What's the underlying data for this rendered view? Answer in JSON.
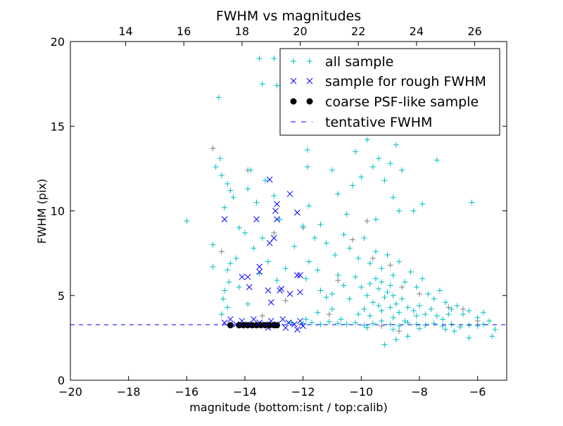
{
  "chart_data": {
    "type": "scatter",
    "title": "FWHM vs magnitudes",
    "xlabel": "magnitude (bottom:isnt / top:calib)",
    "ylabel": "FWHM (pix)",
    "xlim": [
      -20,
      -5
    ],
    "ylim": [
      0,
      20
    ],
    "top_axis_offset": 32.1,
    "x_ticks": [
      -20,
      -18,
      -16,
      -14,
      -12,
      -10,
      -8,
      -6
    ],
    "x_tick_labels": [
      "−20",
      "−18",
      "−16",
      "−14",
      "−12",
      "−10",
      "−8",
      "−6"
    ],
    "top_ticks": [
      14,
      16,
      18,
      20,
      22,
      24,
      26
    ],
    "top_tick_labels": [
      "14",
      "16",
      "18",
      "20",
      "22",
      "24",
      "26"
    ],
    "y_ticks": [
      0,
      5,
      10,
      15,
      20
    ],
    "y_tick_labels": [
      "0",
      "5",
      "10",
      "15",
      "20"
    ],
    "grid": false,
    "legend_position": "top-right",
    "tentative_fwhm": 3.28,
    "series": [
      {
        "name": "all sample",
        "marker": "+",
        "color": "#00bfbf",
        "points": [
          [
            -13.5,
            19.0
          ],
          [
            -13.0,
            19.0
          ],
          [
            -13.4,
            17.5
          ],
          [
            -12.6,
            17.6
          ],
          [
            -12.9,
            17.4
          ],
          [
            -14.9,
            16.7
          ],
          [
            -14.85,
            13.1
          ],
          [
            -15.0,
            12.6
          ],
          [
            -14.8,
            12.1
          ],
          [
            -14.6,
            11.6
          ],
          [
            -14.5,
            11.2
          ],
          [
            -14.4,
            10.8
          ],
          [
            -14.7,
            10.2
          ],
          [
            -14.2,
            9.0
          ],
          [
            -14.0,
            8.7
          ],
          [
            -13.8,
            12.4
          ],
          [
            -13.9,
            11.3
          ],
          [
            -13.6,
            10.5
          ],
          [
            -13.3,
            11.8
          ],
          [
            -13.0,
            10.9
          ],
          [
            -12.8,
            9.5
          ],
          [
            -13.4,
            8.4
          ],
          [
            -13.7,
            7.8
          ],
          [
            -14.3,
            7.2
          ],
          [
            -14.5,
            6.9
          ],
          [
            -14.6,
            6.5
          ],
          [
            -14.55,
            5.8
          ],
          [
            -14.7,
            5.3
          ],
          [
            -14.75,
            4.8
          ],
          [
            -14.6,
            4.3
          ],
          [
            -14.8,
            3.9
          ],
          [
            -14.2,
            5.5
          ],
          [
            -13.9,
            4.5
          ],
          [
            -13.5,
            6.3
          ],
          [
            -13.2,
            7.0
          ],
          [
            -12.9,
            5.9
          ],
          [
            -12.6,
            6.6
          ],
          [
            -12.3,
            7.9
          ],
          [
            -12.0,
            9.1
          ],
          [
            -16.0,
            9.4
          ],
          [
            -15.1,
            8.0
          ],
          [
            -15.1,
            6.7
          ],
          [
            -11.85,
            13.6
          ],
          [
            -11.85,
            12.6
          ],
          [
            -11.8,
            10.3
          ],
          [
            -11.4,
            9.2
          ],
          [
            -11.6,
            8.4
          ],
          [
            -11.8,
            7.0
          ],
          [
            -11.5,
            6.5
          ],
          [
            -11.9,
            6.0
          ],
          [
            -11.4,
            5.3
          ],
          [
            -11.2,
            4.9
          ],
          [
            -11.0,
            4.2
          ],
          [
            -11.5,
            4.0
          ],
          [
            -11.0,
            12.4
          ],
          [
            -10.8,
            11.0
          ],
          [
            -10.5,
            9.8
          ],
          [
            -10.3,
            11.5
          ],
          [
            -10.2,
            13.5
          ],
          [
            -10.0,
            12.0
          ],
          [
            -9.8,
            14.2
          ],
          [
            -9.6,
            12.6
          ],
          [
            -9.4,
            13.1
          ],
          [
            -9.2,
            11.8
          ],
          [
            -9.0,
            12.8
          ],
          [
            -8.8,
            13.9
          ],
          [
            -8.6,
            12.4
          ],
          [
            -8.9,
            10.8
          ],
          [
            -8.7,
            10.0
          ],
          [
            -8.2,
            10.0
          ],
          [
            -7.9,
            10.4
          ],
          [
            -7.4,
            13.0
          ],
          [
            -6.2,
            10.5
          ],
          [
            -10.6,
            8.6
          ],
          [
            -10.4,
            7.8
          ],
          [
            -10.1,
            7.2
          ],
          [
            -9.9,
            8.4
          ],
          [
            -9.7,
            6.9
          ],
          [
            -9.5,
            7.6
          ],
          [
            -9.3,
            6.6
          ],
          [
            -9.1,
            7.4
          ],
          [
            -8.9,
            6.2
          ],
          [
            -8.7,
            7.0
          ],
          [
            -8.5,
            5.8
          ],
          [
            -8.3,
            6.4
          ],
          [
            -8.1,
            5.5
          ],
          [
            -7.9,
            6.0
          ],
          [
            -7.7,
            5.1
          ],
          [
            -7.5,
            4.8
          ],
          [
            -7.3,
            5.3
          ],
          [
            -7.1,
            4.6
          ],
          [
            -6.9,
            4.2
          ],
          [
            -6.7,
            4.4
          ],
          [
            -6.5,
            3.9
          ],
          [
            -6.3,
            4.1
          ],
          [
            -6.0,
            3.7
          ],
          [
            -5.8,
            4.0
          ],
          [
            -5.6,
            3.5
          ],
          [
            -5.4,
            3.0
          ],
          [
            -5.5,
            2.6
          ],
          [
            -6.3,
            2.5
          ],
          [
            -9.2,
            2.1
          ],
          [
            -8.8,
            2.4
          ],
          [
            -8.4,
            2.6
          ],
          [
            -10.2,
            6.1
          ],
          [
            -10.0,
            5.5
          ],
          [
            -9.8,
            5.0
          ],
          [
            -9.6,
            4.6
          ],
          [
            -9.4,
            5.4
          ],
          [
            -9.2,
            4.9
          ],
          [
            -9.0,
            5.6
          ],
          [
            -8.8,
            4.5
          ],
          [
            -8.6,
            4.8
          ],
          [
            -8.4,
            4.3
          ],
          [
            -8.2,
            4.1
          ],
          [
            -8.0,
            4.4
          ],
          [
            -7.8,
            3.9
          ],
          [
            -7.6,
            4.2
          ],
          [
            -7.4,
            3.8
          ],
          [
            -7.2,
            3.6
          ],
          [
            -7.0,
            3.9
          ],
          [
            -10.4,
            4.8
          ],
          [
            -10.6,
            5.6
          ],
          [
            -10.8,
            6.2
          ],
          [
            -11.0,
            5.1
          ],
          [
            -9.7,
            3.8
          ],
          [
            -9.3,
            4.1
          ],
          [
            -8.9,
            3.7
          ],
          [
            -8.5,
            3.5
          ],
          [
            -8.1,
            3.8
          ],
          [
            -9.5,
            9.5
          ],
          [
            -10.9,
            7.4
          ],
          [
            -11.2,
            8.1
          ],
          [
            -9.5,
            6.0
          ],
          [
            -9.3,
            5.8
          ],
          [
            -9.1,
            5.2
          ],
          [
            -8.9,
            5.0
          ],
          [
            -9.7,
            5.7
          ],
          [
            -9.0,
            4.3
          ],
          [
            -8.7,
            4.0
          ],
          [
            -9.4,
            4.4
          ],
          [
            -9.9,
            4.2
          ],
          [
            -10.1,
            3.9
          ],
          [
            -12.4,
            3.4
          ],
          [
            -12.0,
            3.35
          ],
          [
            -11.7,
            3.4
          ],
          [
            -11.4,
            3.3
          ],
          [
            -11.1,
            3.45
          ],
          [
            -10.8,
            3.35
          ],
          [
            -10.5,
            3.3
          ],
          [
            -10.2,
            3.4
          ],
          [
            -9.9,
            3.25
          ],
          [
            -9.6,
            3.35
          ],
          [
            -9.3,
            3.5
          ],
          [
            -9.0,
            3.3
          ],
          [
            -8.7,
            3.2
          ],
          [
            -8.4,
            3.4
          ],
          [
            -8.1,
            3.3
          ],
          [
            -7.8,
            3.25
          ],
          [
            -7.5,
            3.35
          ],
          [
            -7.2,
            3.2
          ],
          [
            -6.9,
            3.3
          ],
          [
            -6.6,
            3.15
          ],
          [
            -6.3,
            3.25
          ],
          [
            -6.0,
            3.2
          ],
          [
            -5.8,
            3.3
          ],
          [
            -11.9,
            3.6
          ],
          [
            -10.7,
            3.6
          ],
          [
            -9.8,
            3.1
          ],
          [
            -8.9,
            3.0
          ],
          [
            -8.0,
            3.05
          ],
          [
            -7.1,
            3.0
          ],
          [
            -6.8,
            2.9
          ]
        ]
      },
      {
        "name": "",
        "marker": "+",
        "color": "#808080",
        "points": [
          [
            -15.1,
            13.7
          ],
          [
            -13.9,
            12.4
          ],
          [
            -13.0,
            8.7
          ],
          [
            -12.0,
            9.0
          ],
          [
            -10.3,
            8.3
          ],
          [
            -9.8,
            9.4
          ],
          [
            -9.6,
            7.2
          ],
          [
            -9.0,
            6.8
          ],
          [
            -8.6,
            5.5
          ],
          [
            -8.0,
            5.1
          ],
          [
            -7.0,
            4.3
          ],
          [
            -6.5,
            4.2
          ],
          [
            -6.0,
            3.5
          ],
          [
            -10.8,
            5.9
          ],
          [
            -11.1,
            3.9
          ],
          [
            -12.6,
            4.7
          ],
          [
            -13.4,
            3.8
          ],
          [
            -9.3,
            3.2
          ],
          [
            -8.7,
            2.9
          ],
          [
            -14.8,
            7.6
          ]
        ]
      },
      {
        "name": "sample for rough FWHM",
        "marker": "x",
        "color": "#0000ff",
        "points": [
          [
            -14.7,
            9.5
          ],
          [
            -13.15,
            11.85
          ],
          [
            -12.45,
            11.0
          ],
          [
            -12.9,
            10.4
          ],
          [
            -12.95,
            10.0
          ],
          [
            -12.2,
            9.9
          ],
          [
            -13.6,
            9.5
          ],
          [
            -12.9,
            9.5
          ],
          [
            -13.15,
            8.1
          ],
          [
            -13.0,
            8.4
          ],
          [
            -13.5,
            6.4
          ],
          [
            -13.5,
            6.7
          ],
          [
            -14.1,
            6.1
          ],
          [
            -13.9,
            6.1
          ],
          [
            -13.85,
            5.5
          ],
          [
            -13.2,
            5.3
          ],
          [
            -13.1,
            4.6
          ],
          [
            -12.75,
            5.4
          ],
          [
            -12.8,
            5.3
          ],
          [
            -12.45,
            5.1
          ],
          [
            -12.2,
            6.2
          ],
          [
            -12.1,
            6.2
          ],
          [
            -12.1,
            5.2
          ],
          [
            -14.7,
            3.4
          ],
          [
            -14.5,
            3.6
          ],
          [
            -14.3,
            3.3
          ],
          [
            -14.1,
            3.5
          ],
          [
            -13.9,
            3.3
          ],
          [
            -13.7,
            3.6
          ],
          [
            -13.5,
            3.4
          ],
          [
            -13.3,
            3.3
          ],
          [
            -13.1,
            3.5
          ],
          [
            -12.9,
            3.3
          ],
          [
            -12.7,
            3.6
          ],
          [
            -12.5,
            3.4
          ],
          [
            -12.3,
            3.3
          ],
          [
            -12.1,
            3.5
          ],
          [
            -12.0,
            3.2
          ],
          [
            -12.6,
            3.1
          ],
          [
            -13.2,
            3.1
          ],
          [
            -12.2,
            3.0
          ]
        ]
      },
      {
        "name": "coarse PSF-like sample",
        "marker": "o",
        "color": "#000000",
        "points": [
          [
            -14.5,
            3.25
          ],
          [
            -14.2,
            3.25
          ],
          [
            -14.05,
            3.25
          ],
          [
            -13.9,
            3.25
          ],
          [
            -13.75,
            3.25
          ],
          [
            -13.6,
            3.25
          ],
          [
            -13.45,
            3.25
          ],
          [
            -13.3,
            3.25
          ],
          [
            -13.15,
            3.25
          ],
          [
            -13.0,
            3.25
          ],
          [
            -12.9,
            3.25
          ]
        ]
      },
      {
        "name": "tentative FWHM",
        "marker": "--",
        "color": "#0000ff",
        "points": []
      }
    ]
  }
}
